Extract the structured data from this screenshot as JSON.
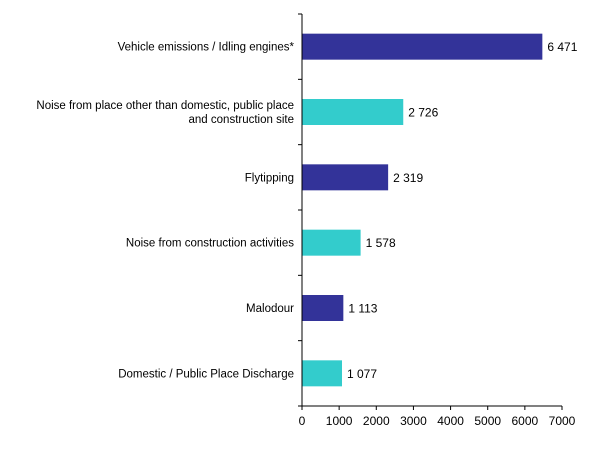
{
  "chart_data": {
    "type": "bar",
    "orientation": "horizontal",
    "categories": [
      [
        "Vehicle emissions / Idling engines*"
      ],
      [
        "Noise from place other than domestic, public place",
        "and construction site"
      ],
      [
        "Flytipping"
      ],
      [
        "Noise from construction activities"
      ],
      [
        "Malodour"
      ],
      [
        "Domestic / Public Place Discharge"
      ]
    ],
    "values": [
      6471,
      2726,
      2319,
      1578,
      1113,
      1077
    ],
    "value_labels": [
      "6 471",
      "2 726",
      "2 319",
      "1 578",
      "1 113",
      "1 077"
    ],
    "bar_colors": [
      "#333399",
      "#33cccc",
      "#333399",
      "#33cccc",
      "#333399",
      "#33cccc"
    ],
    "xlim": [
      0,
      7000
    ],
    "xticks": [
      0,
      1000,
      2000,
      3000,
      4000,
      5000,
      6000,
      7000
    ],
    "xlabel": "",
    "ylabel": "",
    "title": "",
    "grid": false,
    "legend": "none"
  }
}
